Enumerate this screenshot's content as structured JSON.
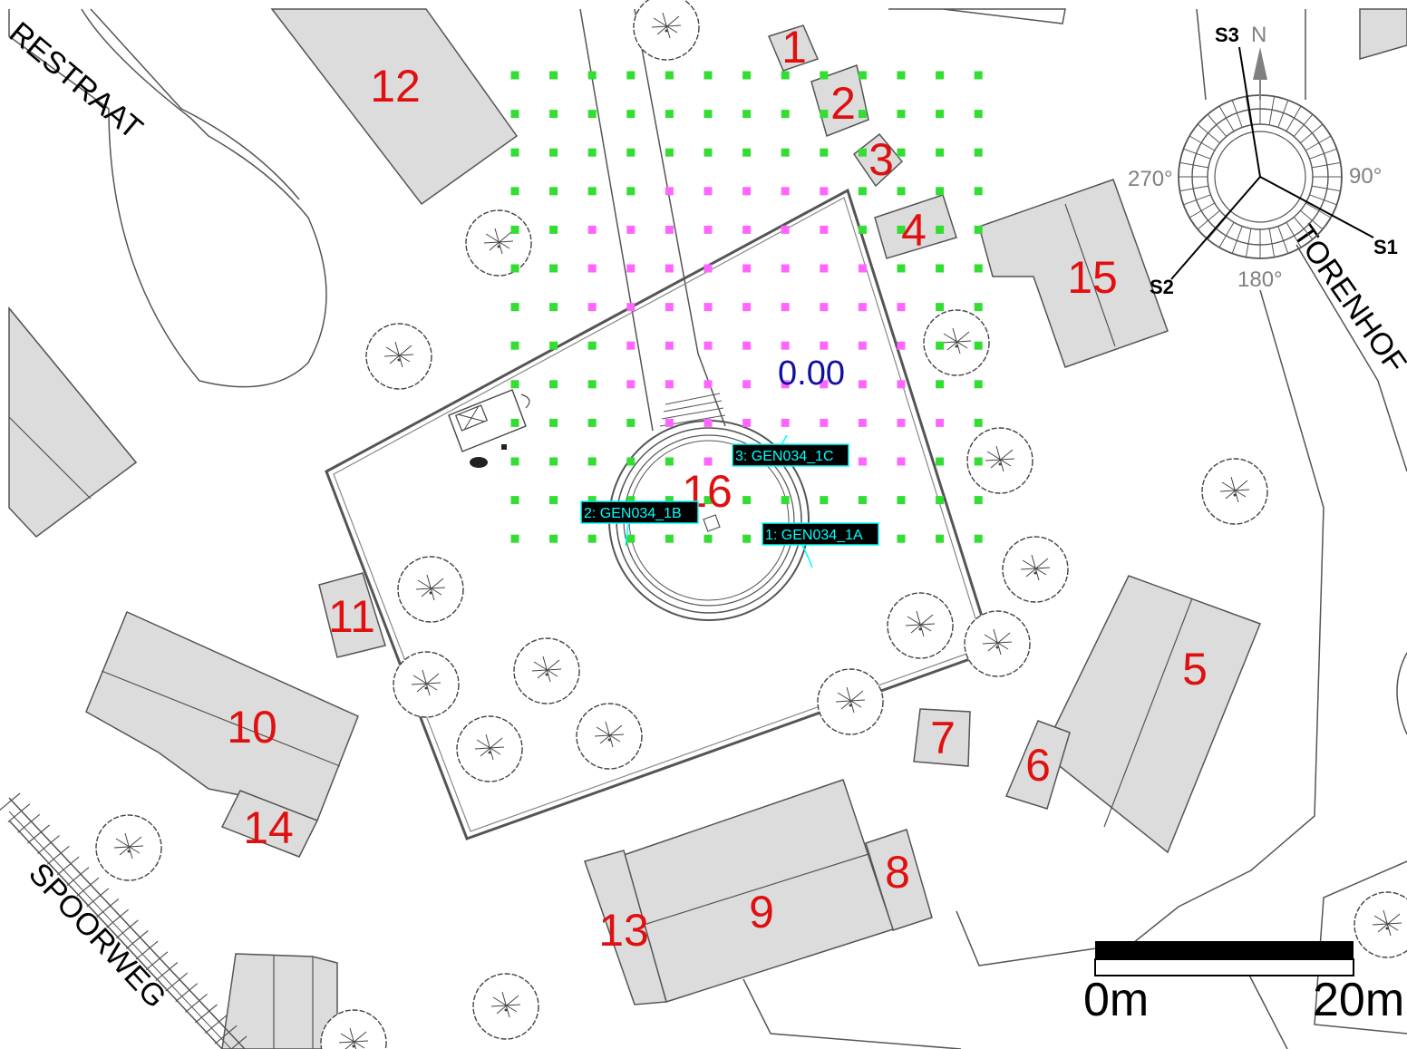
{
  "streets": {
    "top_left": "RESTRAAT",
    "right": "TORENHOF",
    "bottom_left": "SPOORWEG"
  },
  "buildings": [
    "1",
    "2",
    "3",
    "4",
    "5",
    "6",
    "7",
    "8",
    "9",
    "10",
    "11",
    "12",
    "13",
    "14",
    "15",
    "16"
  ],
  "compass": {
    "north": "N",
    "deg_270": "270°",
    "deg_90": "90°",
    "deg_180": "180°",
    "s1": "S1",
    "s2": "S2",
    "s3": "S3"
  },
  "generators": {
    "gen_1a": "1: GEN034_1A",
    "gen_1b": "2: GEN034_1B",
    "gen_1c": "3: GEN034_1C"
  },
  "grid_value": "0.00",
  "scale": {
    "start": "0m",
    "end": "20m"
  },
  "colors": {
    "grid_outer": "#33dd33",
    "grid_inner": "#ff66ff",
    "building_number": "#e01010",
    "generator_label": "#00ffff",
    "value": "#1010a0"
  }
}
